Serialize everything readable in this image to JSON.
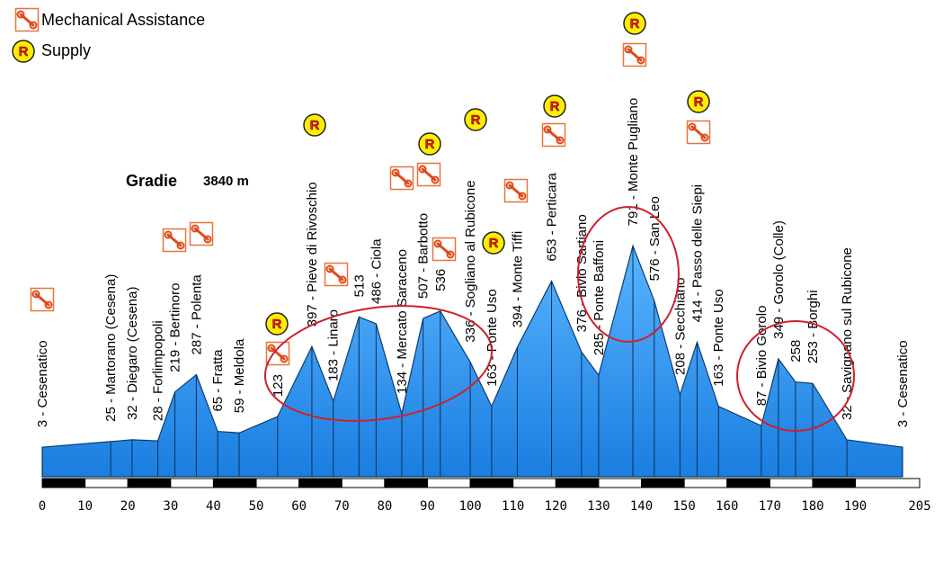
{
  "legend": {
    "mechanical": "Mechanical Assistance",
    "supply": "Supply",
    "supply_icon": "R"
  },
  "chart_data": {
    "type": "area",
    "title": "Gradie",
    "subtitle": "3840 m",
    "x": [
      0,
      16,
      21,
      27,
      31,
      36,
      41,
      46,
      55,
      63,
      68,
      74,
      78,
      84,
      89,
      93,
      100,
      105,
      111,
      119,
      126,
      130,
      138,
      143,
      149,
      153,
      158,
      168,
      172,
      176,
      180,
      188,
      201
    ],
    "values": [
      3,
      25,
      32,
      28,
      219,
      287,
      65,
      59,
      123,
      397,
      183,
      513,
      486,
      134,
      507,
      536,
      336,
      163,
      394,
      653,
      376,
      285,
      791,
      576,
      208,
      414,
      163,
      87,
      349,
      258,
      253,
      32,
      3
    ],
    "value_labels": [
      "3 - Cesenatico",
      "25 - Martorano (Cesena)",
      "32 - Diegaro (Cesena)",
      "28 - Forlimpopoli",
      "219 - Bertinoro",
      "287 - Polenta",
      "65 - Fratta",
      "59 - Meldola",
      "123",
      "397 - Pieve di Rivoschio",
      "183 - Linaro",
      "513",
      "486 - Ciola",
      "134 - Mercato Saraceno",
      "507 - Barbotto",
      "536",
      "336 - Sogliano al Rubicone",
      "163 - Ponte Uso",
      "394 - Monte Tiffi",
      "653 - Perticara",
      "376 - Bivio Sartiano",
      "285 - Ponte Baffoni",
      "791 - Monte Pugliano",
      "576 - San Leo",
      "208 - Secchiano",
      "414 - Passo delle Siepi",
      "163 - Ponte Uso",
      "87 - Bivio Gorolo",
      "349 - Gorolo (Colle)",
      "258",
      "253 - Borghi",
      "32 - Savignano sul Rubicone",
      "3 - Cesenatico"
    ],
    "color": "#2693f5",
    "xlim": [
      0,
      205
    ],
    "xticks": [
      0,
      10,
      20,
      30,
      40,
      50,
      60,
      70,
      80,
      90,
      100,
      110,
      120,
      130,
      140,
      150,
      160,
      170,
      180,
      190,
      205
    ]
  }
}
